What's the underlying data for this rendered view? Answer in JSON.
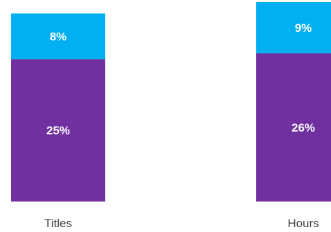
{
  "chart_data": {
    "type": "bar",
    "stacked": true,
    "categories": [
      "Titles",
      "Hours"
    ],
    "series": [
      {
        "values": [
          25,
          26
        ],
        "labels": [
          "25%",
          "26%"
        ],
        "color": "#7030a0"
      },
      {
        "values": [
          8,
          9
        ],
        "labels": [
          "8%",
          "9%"
        ],
        "color": "#00b0f0"
      }
    ],
    "title": "",
    "xlabel": "",
    "ylabel": "",
    "ylim": [
      0,
      35
    ],
    "grid": false,
    "legend": "none"
  }
}
